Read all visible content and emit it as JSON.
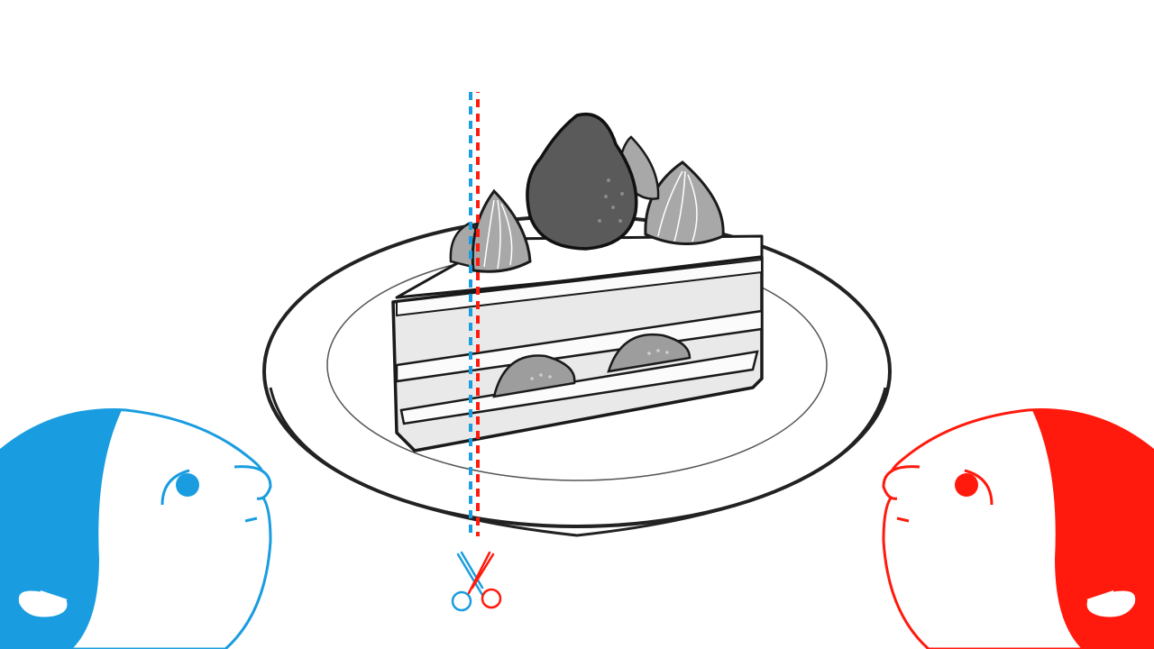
{
  "scene": {
    "background": "#ffffff",
    "players": [
      {
        "id": "blue",
        "color": "#1a9de0",
        "side": "left"
      },
      {
        "id": "red",
        "color": "#ff1a0d",
        "side": "right"
      }
    ],
    "cake": {
      "fill_top": "#ffffff",
      "sponge": "#ececec",
      "cream_layer": "#fafafa",
      "strawberry": "#5a5a5a",
      "fruit_slices": "#9d9d9d",
      "piping": "#a8a8a8",
      "outline": "#1a1a1a"
    },
    "plate": {
      "color": "#ffffff",
      "outline": "#222222"
    },
    "cut_line": {
      "colors": [
        "#1a9de0",
        "#ff1a0d"
      ],
      "style": "dashed"
    },
    "tool_icon": "scissors-icon"
  }
}
